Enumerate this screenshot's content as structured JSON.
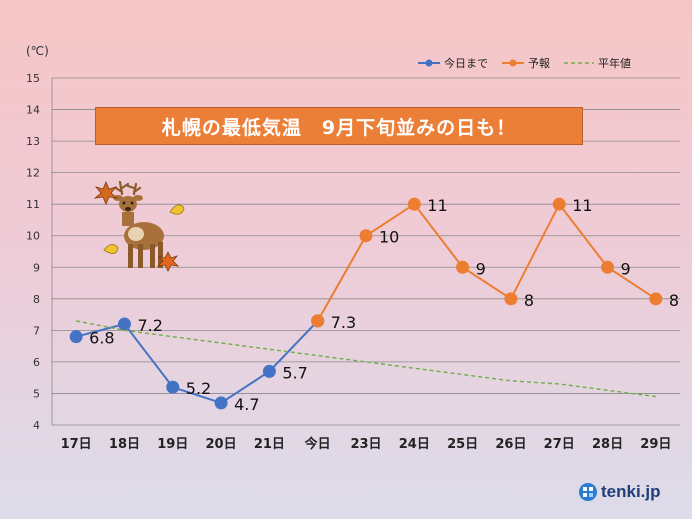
{
  "chart_data": {
    "type": "line",
    "title": "札幌の最低気温　9月下旬並みの日も！",
    "ylabel": "(℃)",
    "ylim": [
      4,
      15
    ],
    "yticks": [
      "4",
      "5",
      "6",
      "7",
      "8",
      "9",
      "10",
      "11",
      "12",
      "13",
      "14",
      "15"
    ],
    "categories": [
      "17日",
      "18日",
      "19日",
      "20日",
      "21日",
      "今日",
      "23日",
      "24日",
      "25日",
      "26日",
      "27日",
      "28日",
      "29日"
    ],
    "legend_position": "top-right",
    "grid": true,
    "series": [
      {
        "name": "今日まで",
        "color": "#4472c4",
        "style": "solid-marker",
        "values": [
          6.8,
          7.2,
          5.2,
          4.7,
          5.7,
          7.3,
          null,
          null,
          null,
          null,
          null,
          null,
          null
        ],
        "labels": [
          "6.8",
          "7.2",
          "5.2",
          "4.7",
          "5.7",
          "7.3",
          null,
          null,
          null,
          null,
          null,
          null,
          null
        ]
      },
      {
        "name": "予報",
        "color": "#ed7d31",
        "style": "solid-marker",
        "values": [
          null,
          null,
          null,
          null,
          null,
          7.3,
          10,
          11,
          9,
          8,
          11,
          9,
          8
        ],
        "labels": [
          null,
          null,
          null,
          null,
          null,
          null,
          "10",
          "11",
          "9",
          "8",
          "11",
          "9",
          "8"
        ]
      },
      {
        "name": "平年値",
        "color": "#70ad47",
        "style": "dashed",
        "values": [
          7.3,
          7.0,
          6.8,
          6.6,
          6.4,
          6.2,
          6.0,
          5.8,
          5.6,
          5.4,
          5.3,
          5.1,
          4.9
        ]
      }
    ]
  },
  "logo": {
    "text": "tenki.jp"
  }
}
